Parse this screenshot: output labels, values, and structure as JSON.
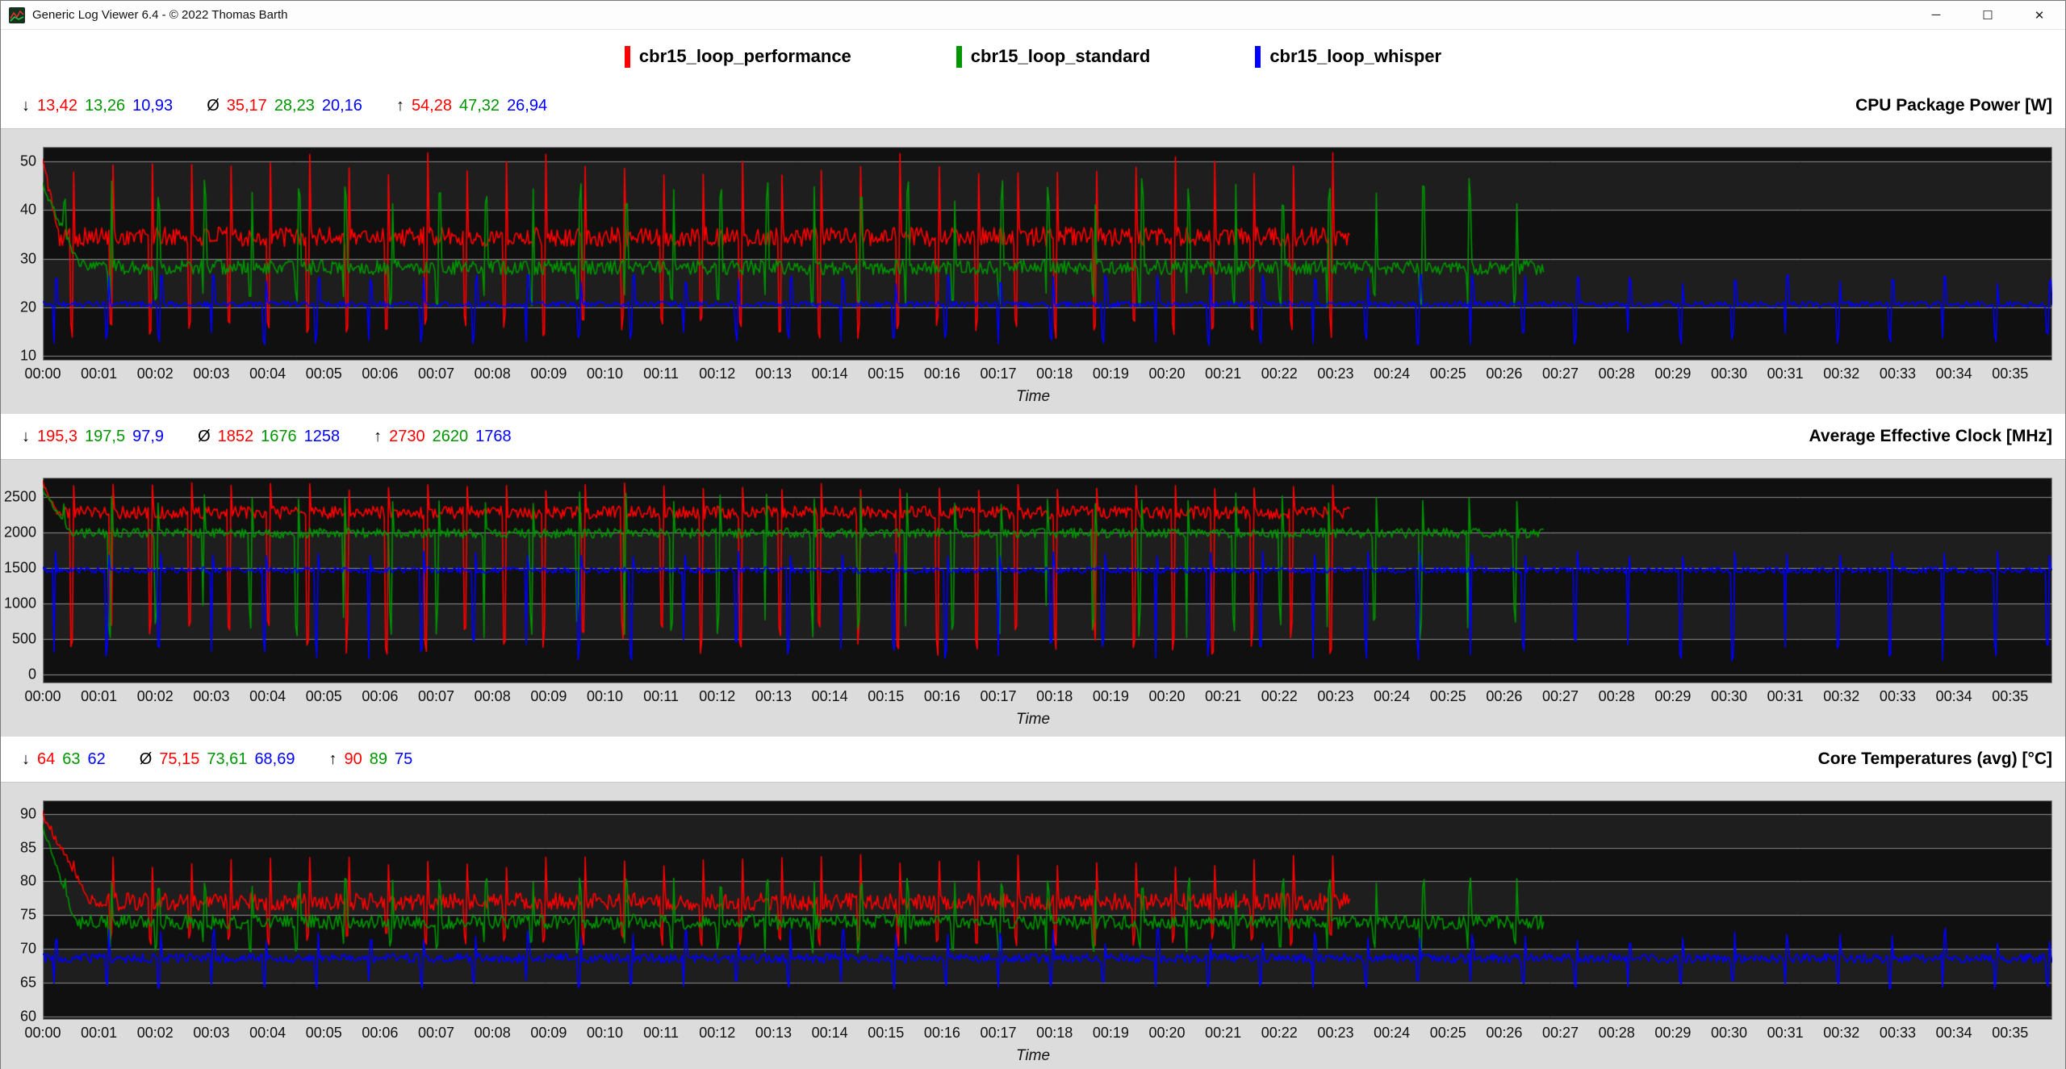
{
  "window": {
    "title": "Generic Log Viewer 6.4 - © 2022 Thomas Barth",
    "controls": {
      "minimize": "─",
      "maximize": "☐",
      "close": "✕"
    }
  },
  "symbols": {
    "min": "↓",
    "avg": "Ø",
    "max": "↑"
  },
  "legend": [
    {
      "label": "cbr15_loop_performance",
      "color": "#ff0000"
    },
    {
      "label": "cbr15_loop_standard",
      "color": "#009600"
    },
    {
      "label": "cbr15_loop_whisper",
      "color": "#0000ff"
    }
  ],
  "time_axis": {
    "label": "Time",
    "total_seconds": 2145,
    "ticks": [
      "00:00",
      "00:01",
      "00:02",
      "00:03",
      "00:04",
      "00:05",
      "00:06",
      "00:07",
      "00:08",
      "00:09",
      "00:10",
      "00:11",
      "00:12",
      "00:13",
      "00:14",
      "00:15",
      "00:16",
      "00:17",
      "00:18",
      "00:19",
      "00:20",
      "00:21",
      "00:22",
      "00:23",
      "00:24",
      "00:25",
      "00:26",
      "00:27",
      "00:28",
      "00:29",
      "00:30",
      "00:31",
      "00:32",
      "00:33",
      "00:34",
      "00:35"
    ]
  },
  "plot_style": {
    "bg": "#101010",
    "band": "rgba(255,255,255,0.06)",
    "grid": "#8f8f8f",
    "surround": "#dcdcdc"
  },
  "panels": [
    {
      "title": "CPU Package Power [W]",
      "stats": {
        "min": [
          "13,42",
          "13,26",
          "10,93"
        ],
        "avg": [
          "35,17",
          "28,23",
          "20,16"
        ],
        "max": [
          "54,28",
          "47,32",
          "26,94"
        ]
      }
    },
    {
      "title": "Average Effective Clock [MHz]",
      "stats": {
        "min": [
          "195,3",
          "197,5",
          "97,9"
        ],
        "avg": [
          "1852",
          "1676",
          "1258"
        ],
        "max": [
          "2730",
          "2620",
          "1768"
        ]
      }
    },
    {
      "title": "Core Temperatures (avg) [°C]",
      "stats": {
        "min": [
          "64",
          "63",
          "62"
        ],
        "avg": [
          "75,15",
          "73,61",
          "68,69"
        ],
        "max": [
          "90",
          "89",
          "75"
        ]
      }
    }
  ],
  "chart_data": [
    {
      "type": "line",
      "title": "CPU Package Power [W]",
      "xlabel": "Time",
      "ylabel": "W",
      "y_ticks": [
        10,
        20,
        30,
        40,
        50
      ],
      "y_range": [
        9,
        53
      ],
      "x_range_seconds": [
        0,
        2145
      ],
      "grid": "horizontal",
      "legend_position": "top",
      "series": [
        {
          "name": "cbr15_loop_performance",
          "min": 13.42,
          "avg": 35.17,
          "max": 54.28,
          "start": 0,
          "end": 1395,
          "period": 42,
          "phase": 12,
          "base": 34.5,
          "noise": 2.0,
          "dip": 15,
          "dipNoise": 5,
          "dipFrac": 0.05,
          "spike": 49.5,
          "spikeNoise": 5,
          "spikeFrac": 0.055,
          "seed": 101,
          "init": {
            "until": 18,
            "value": 50
          }
        },
        {
          "name": "cbr15_loop_standard",
          "min": 13.26,
          "avg": 28.23,
          "max": 47.32,
          "start": 0,
          "end": 1602,
          "period": 50,
          "phase": 30,
          "base": 28.2,
          "noise": 1.5,
          "dip": 21,
          "dipNoise": 3,
          "dipFrac": 0.045,
          "spike": 43.5,
          "spikeNoise": 6,
          "spikeFrac": 0.05,
          "seed": 202,
          "init": {
            "until": 40,
            "value": 45
          }
        },
        {
          "name": "cbr15_loop_whisper",
          "min": 10.93,
          "avg": 20.16,
          "max": 26.94,
          "start": 0,
          "end": 2145,
          "period": 56,
          "phase": 45,
          "base": 20.6,
          "noise": 0.6,
          "dip": 13,
          "dipNoise": 3,
          "dipFrac": 0.04,
          "spike": 25.8,
          "spikeNoise": 2,
          "spikeFrac": 0.045,
          "seed": 303
        }
      ]
    },
    {
      "type": "line",
      "title": "Average Effective Clock [MHz]",
      "xlabel": "Time",
      "ylabel": "MHz",
      "y_ticks": [
        0,
        500,
        1000,
        1500,
        2000,
        2500
      ],
      "y_range": [
        -120,
        2770
      ],
      "x_range_seconds": [
        0,
        2145
      ],
      "grid": "horizontal",
      "legend_position": "top",
      "series": [
        {
          "name": "cbr15_loop_performance",
          "min": 195.3,
          "avg": 1852,
          "max": 2730,
          "start": 0,
          "end": 1395,
          "period": 42,
          "phase": 12,
          "base": 2280,
          "noise": 90,
          "dip": 420,
          "dipNoise": 500,
          "dipFrac": 0.05,
          "spike": 2640,
          "spikeNoise": 120,
          "spikeFrac": 0.04,
          "seed": 404,
          "init": {
            "until": 15,
            "value": 2700
          }
        },
        {
          "name": "cbr15_loop_standard",
          "min": 197.5,
          "avg": 1676,
          "max": 2620,
          "start": 0,
          "end": 1602,
          "period": 50,
          "phase": 30,
          "base": 1990,
          "noise": 70,
          "dip": 650,
          "dipNoise": 500,
          "dipFrac": 0.045,
          "spike": 2480,
          "spikeNoise": 180,
          "spikeFrac": 0.035,
          "seed": 505,
          "init": {
            "until": 30,
            "value": 2600
          }
        },
        {
          "name": "cbr15_loop_whisper",
          "min": 97.9,
          "avg": 1258,
          "max": 1768,
          "start": 0,
          "end": 2145,
          "period": 56,
          "phase": 45,
          "base": 1470,
          "noise": 45,
          "dip": 300,
          "dipNoise": 350,
          "dipFrac": 0.04,
          "spike": 1700,
          "spikeNoise": 80,
          "spikeFrac": 0.03,
          "seed": 606
        }
      ]
    },
    {
      "type": "line",
      "title": "Core Temperatures (avg) [°C]",
      "xlabel": "Time",
      "ylabel": "°C",
      "y_ticks": [
        60,
        65,
        70,
        75,
        80,
        85,
        90
      ],
      "y_range": [
        59.5,
        92
      ],
      "x_range_seconds": [
        0,
        2145
      ],
      "grid": "horizontal",
      "legend_position": "top",
      "series": [
        {
          "name": "cbr15_loop_performance",
          "min": 64,
          "avg": 75.15,
          "max": 90,
          "start": 0,
          "end": 1395,
          "period": 42,
          "phase": 12,
          "base": 77,
          "noise": 1.3,
          "dip": 71,
          "dipNoise": 2,
          "dipFrac": 0.05,
          "spike": 83,
          "spikeNoise": 2,
          "spikeFrac": 0.05,
          "seed": 707,
          "init": {
            "until": 50,
            "value": 90
          }
        },
        {
          "name": "cbr15_loop_standard",
          "min": 63,
          "avg": 73.61,
          "max": 89,
          "start": 0,
          "end": 1602,
          "period": 50,
          "phase": 30,
          "base": 74,
          "noise": 1.1,
          "dip": 70,
          "dipNoise": 2,
          "dipFrac": 0.045,
          "spike": 79.5,
          "spikeNoise": 2,
          "spikeFrac": 0.05,
          "seed": 808,
          "init": {
            "until": 35,
            "value": 88
          }
        },
        {
          "name": "cbr15_loop_whisper",
          "min": 62,
          "avg": 68.69,
          "max": 75,
          "start": 0,
          "end": 2145,
          "period": 56,
          "phase": 45,
          "base": 68.6,
          "noise": 0.7,
          "dip": 64.5,
          "dipNoise": 1.5,
          "dipFrac": 0.04,
          "spike": 72,
          "spikeNoise": 2.5,
          "spikeFrac": 0.04,
          "seed": 909
        }
      ]
    }
  ]
}
